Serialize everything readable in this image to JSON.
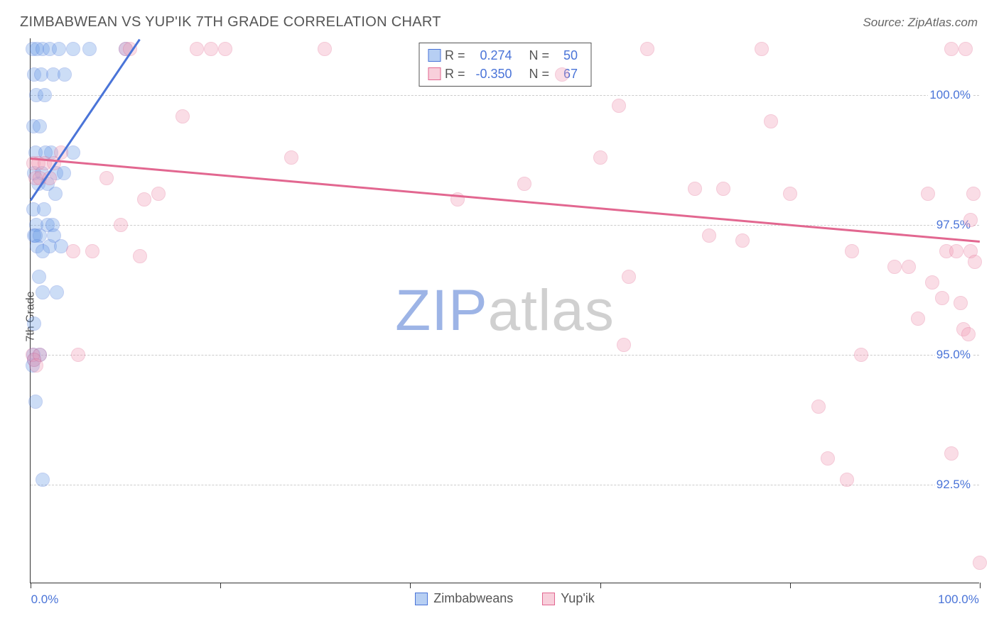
{
  "title": "ZIMBABWEAN VS YUP'IK 7TH GRADE CORRELATION CHART",
  "source": "Source: ZipAtlas.com",
  "ylabel": "7th Grade",
  "watermark": {
    "zip": "ZIP",
    "atlas": "atlas"
  },
  "chart": {
    "type": "scatter",
    "background_color": "#ffffff",
    "grid_color": "#cccccc",
    "axis_color": "#333333",
    "tick_label_color": "#4a74d8",
    "xlim": [
      0,
      100
    ],
    "ylim": [
      90.6,
      101.1
    ],
    "y_ticks": [
      92.5,
      95.0,
      97.5,
      100.0
    ],
    "y_tick_labels": [
      "92.5%",
      "95.0%",
      "97.5%",
      "100.0%"
    ],
    "x_ticks": [
      0,
      20,
      40,
      60,
      80,
      100
    ],
    "x_tick_labels_shown": {
      "0": "0.0%",
      "100": "100.0%"
    },
    "marker_radius": 10,
    "marker_opacity": 0.35,
    "marker_border_width": 1.5,
    "line_width": 3,
    "series": [
      {
        "name": "Zimbabweans",
        "color": "#6fa0e8",
        "border_color": "#4a74d8",
        "R": "0.274",
        "N": "50",
        "trend": {
          "y_at_x0": 98.0,
          "slope_per_x": 0.27
        },
        "points": [
          [
            0.2,
            100.9
          ],
          [
            0.7,
            100.9
          ],
          [
            1.3,
            100.9
          ],
          [
            2.0,
            100.9
          ],
          [
            3.0,
            100.9
          ],
          [
            4.5,
            100.9
          ],
          [
            6.2,
            100.9
          ],
          [
            10.0,
            100.9
          ],
          [
            0.4,
            100.4
          ],
          [
            1.1,
            100.4
          ],
          [
            2.4,
            100.4
          ],
          [
            3.6,
            100.4
          ],
          [
            0.6,
            100.0
          ],
          [
            1.5,
            100.0
          ],
          [
            0.3,
            99.4
          ],
          [
            1.0,
            99.4
          ],
          [
            2.2,
            98.9
          ],
          [
            0.5,
            98.9
          ],
          [
            1.6,
            98.9
          ],
          [
            0.4,
            98.5
          ],
          [
            1.2,
            98.5
          ],
          [
            2.7,
            98.5
          ],
          [
            3.5,
            98.5
          ],
          [
            0.8,
            98.3
          ],
          [
            1.8,
            98.3
          ],
          [
            2.6,
            98.1
          ],
          [
            0.3,
            97.8
          ],
          [
            1.4,
            97.8
          ],
          [
            0.6,
            97.5
          ],
          [
            1.8,
            97.5
          ],
          [
            2.3,
            97.5
          ],
          [
            0.4,
            97.3
          ],
          [
            1.0,
            97.3
          ],
          [
            0.7,
            97.1
          ],
          [
            2.0,
            97.1
          ],
          [
            1.3,
            97.0
          ],
          [
            0.5,
            97.3
          ],
          [
            2.5,
            97.3
          ],
          [
            3.2,
            97.1
          ],
          [
            0.9,
            96.5
          ],
          [
            1.3,
            96.2
          ],
          [
            2.8,
            96.2
          ],
          [
            0.4,
            95.6
          ],
          [
            0.3,
            95.0
          ],
          [
            1.0,
            95.0
          ],
          [
            0.4,
            94.9
          ],
          [
            0.2,
            94.8
          ],
          [
            0.5,
            94.1
          ],
          [
            1.3,
            92.6
          ],
          [
            4.5,
            98.9
          ]
        ]
      },
      {
        "name": "Yup'ik",
        "color": "#f2a0b8",
        "border_color": "#e26790",
        "R": "-0.350",
        "N": "67",
        "trend": {
          "y_at_x0": 98.8,
          "slope_per_x": -0.016
        },
        "points": [
          [
            0.3,
            98.7
          ],
          [
            0.8,
            98.7
          ],
          [
            1.5,
            98.7
          ],
          [
            2.5,
            98.7
          ],
          [
            3.2,
            98.9
          ],
          [
            0.5,
            98.4
          ],
          [
            1.0,
            98.4
          ],
          [
            2.0,
            98.4
          ],
          [
            10.0,
            100.9
          ],
          [
            10.5,
            100.9
          ],
          [
            17.5,
            100.9
          ],
          [
            19.0,
            100.9
          ],
          [
            20.5,
            100.9
          ],
          [
            31.0,
            100.9
          ],
          [
            56.0,
            100.4
          ],
          [
            65.0,
            100.9
          ],
          [
            77.0,
            100.9
          ],
          [
            97.0,
            100.9
          ],
          [
            98.5,
            100.9
          ],
          [
            16.0,
            99.6
          ],
          [
            27.5,
            98.8
          ],
          [
            52.0,
            98.3
          ],
          [
            60.0,
            98.8
          ],
          [
            62.0,
            99.8
          ],
          [
            63.0,
            96.5
          ],
          [
            62.5,
            95.2
          ],
          [
            70.0,
            98.2
          ],
          [
            71.5,
            97.3
          ],
          [
            73.0,
            98.2
          ],
          [
            78.0,
            99.5
          ],
          [
            80.0,
            98.1
          ],
          [
            8.0,
            98.4
          ],
          [
            9.5,
            97.5
          ],
          [
            11.5,
            96.9
          ],
          [
            12.0,
            98.0
          ],
          [
            13.5,
            98.1
          ],
          [
            5.0,
            95.0
          ],
          [
            6.5,
            97.0
          ],
          [
            4.5,
            97.0
          ],
          [
            83.0,
            94.0
          ],
          [
            86.0,
            92.6
          ],
          [
            86.5,
            97.0
          ],
          [
            87.5,
            95.0
          ],
          [
            91.0,
            96.7
          ],
          [
            92.5,
            96.7
          ],
          [
            93.5,
            95.7
          ],
          [
            94.5,
            98.1
          ],
          [
            95.0,
            96.4
          ],
          [
            96.0,
            96.1
          ],
          [
            96.5,
            97.0
          ],
          [
            97.0,
            93.1
          ],
          [
            97.5,
            97.0
          ],
          [
            98.0,
            96.0
          ],
          [
            98.3,
            95.5
          ],
          [
            98.8,
            95.4
          ],
          [
            99.0,
            97.0
          ],
          [
            99.3,
            98.1
          ],
          [
            99.5,
            96.8
          ],
          [
            0.2,
            95.0
          ],
          [
            0.4,
            94.9
          ],
          [
            1.0,
            95.0
          ],
          [
            0.6,
            94.8
          ],
          [
            100.0,
            91.0
          ],
          [
            99.0,
            97.6
          ],
          [
            84.0,
            93.0
          ],
          [
            75.0,
            97.2
          ],
          [
            45.0,
            98.0
          ]
        ]
      }
    ]
  },
  "legend_top": {
    "label_R": "R =",
    "label_N": "N ="
  },
  "legend_bottom_labels": [
    "Zimbabweans",
    "Yup'ik"
  ]
}
